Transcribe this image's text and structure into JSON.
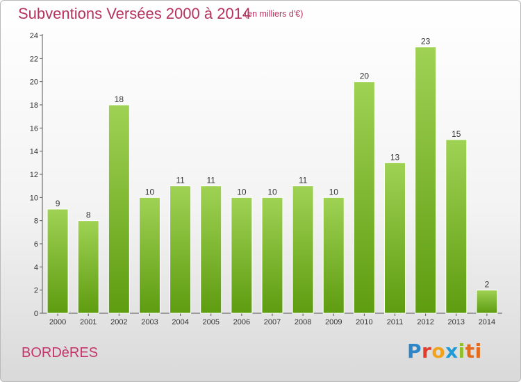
{
  "header": {
    "title": "Subventions Versées 2000 à 2014",
    "subtitle": "(en milliers d'€)"
  },
  "commune": "BORDèRES",
  "logo": {
    "text": "Proxiti",
    "letters": [
      "P",
      "r",
      "o",
      "x",
      "i",
      "ti"
    ]
  },
  "colors": {
    "title": "#b5325e",
    "bar_top": "#9fd254",
    "bar_bottom": "#5e9c10"
  },
  "chart_data": {
    "type": "bar",
    "title": "Subventions Versées 2000 à 2014",
    "subtitle": "(en milliers d'€)",
    "xlabel": "",
    "ylabel": "",
    "categories": [
      "2000",
      "2001",
      "2002",
      "2003",
      "2004",
      "2005",
      "2006",
      "2007",
      "2008",
      "2009",
      "2010",
      "2011",
      "2012",
      "2013",
      "2014"
    ],
    "values": [
      9,
      8,
      18,
      10,
      11,
      11,
      10,
      10,
      11,
      10,
      20,
      13,
      23,
      15,
      2
    ],
    "ylim": [
      0,
      24
    ],
    "yticks": [
      0,
      2,
      4,
      6,
      8,
      10,
      12,
      14,
      16,
      18,
      20,
      22,
      24
    ],
    "grid": false,
    "data_labels": true
  }
}
